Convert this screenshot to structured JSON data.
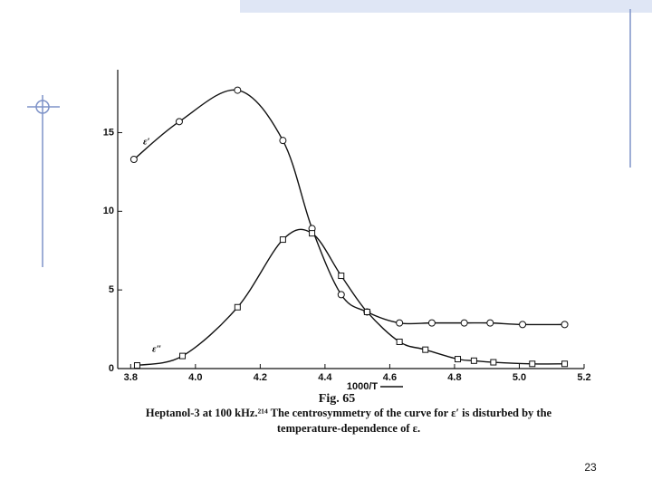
{
  "slide_number": "23",
  "chart_data": {
    "type": "line",
    "figure_label": "Fig. 65",
    "caption": [
      "Heptanol-3 at 100 kHz.²¹⁴ The centrosymmetry of the curve for ε′ is disturbed by the",
      "temperature-dependence of ε."
    ],
    "x_label": "1000/T",
    "xlim": [
      3.76,
      5.2
    ],
    "xticks": [
      3.8,
      {
        "value": 4,
        "label": "4.0"
      },
      4.2,
      4.4,
      4.6,
      4.8,
      {
        "value": 5,
        "label": "5.0"
      },
      5.2
    ],
    "ylim": [
      0,
      19
    ],
    "yticks": [
      0,
      5,
      10,
      15
    ],
    "series": [
      {
        "name": "ε′",
        "color": "#111111",
        "x": [
          3.81,
          3.95,
          4.13,
          4.27,
          4.36,
          4.45,
          4.53,
          4.63,
          4.73,
          4.83,
          4.91,
          5.01,
          5.14
        ],
        "values": [
          13.3,
          15.7,
          17.7,
          14.5,
          8.9,
          4.7,
          3.6,
          2.9,
          2.9,
          2.9,
          2.9,
          2.8,
          2.8
        ]
      },
      {
        "name": "ε″",
        "color": "#111111",
        "x": [
          3.82,
          3.96,
          4.13,
          4.27,
          4.36,
          4.45,
          4.53,
          4.63,
          4.71,
          4.81,
          4.86,
          4.92,
          5.04,
          5.14
        ],
        "values": [
          0.2,
          0.8,
          3.9,
          8.2,
          8.6,
          5.9,
          3.6,
          1.7,
          1.2,
          0.6,
          0.5,
          0.4,
          0.3,
          0.3
        ]
      }
    ]
  }
}
